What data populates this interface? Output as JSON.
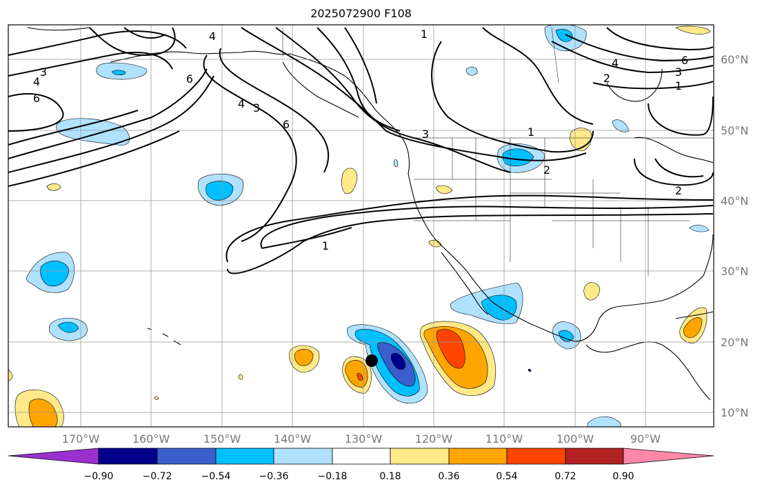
{
  "title": "2025072900 F108",
  "lat_labels": [
    "60°N",
    "50°N",
    "40°N",
    "30°N",
    "20°N",
    "10°N"
  ],
  "lon_labels": [
    "170°W",
    "160°W",
    "150°W",
    "140°W",
    "130°W",
    "120°W",
    "110°W",
    "100°W",
    "90°W"
  ],
  "contour_labels": [
    "1",
    "1",
    "1",
    "1",
    "2",
    "2",
    "2",
    "3",
    "3",
    "3",
    "3",
    "4",
    "4",
    "4",
    "4",
    "6",
    "6",
    "6",
    "6"
  ],
  "colorbar": {
    "ticks": [
      "−0.90",
      "−0.72",
      "−0.54",
      "−0.36",
      "−0.18",
      "0.18",
      "0.36",
      "0.54",
      "0.72",
      "0.90"
    ],
    "colors": [
      "#9b30d0",
      "#00008b",
      "#3a5fcd",
      "#00bfff",
      "#b0e2ff",
      "#ffffff",
      "#ffe989",
      "#ffa500",
      "#ff4500",
      "#b22222",
      "#ff88aa"
    ]
  },
  "palette": {
    "light_blue": "#b0e2ff",
    "blue": "#00bfff",
    "mid_blue": "#3a5fcd",
    "navy": "#00008b",
    "yellow": "#ffe989",
    "orange": "#ffa500",
    "red_orange": "#ff4500",
    "grid": "#999999"
  }
}
